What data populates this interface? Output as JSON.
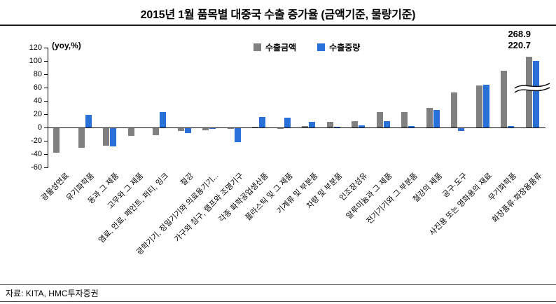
{
  "footer": {
    "source": "자료: KITA, HMC투자증권"
  },
  "colors": {
    "amount": "#808080",
    "weight": "#2a70d9",
    "axis": "#000000"
  },
  "chart_data": {
    "type": "bar",
    "title": "2015년 1월 품목별 대중국 수출 증가율 (금액기준, 물량기준)",
    "ylabel": "(yoy,%)",
    "ylim": [
      -60,
      120
    ],
    "yticks": [
      120,
      100,
      80,
      60,
      40,
      20,
      0,
      -20,
      -40,
      -60
    ],
    "grid": false,
    "legend_position": "top-center-inside",
    "categories": [
      "광물성연료",
      "유기화학품",
      "동과 그 제품",
      "고무와 그 제품",
      "염료, 안료, 페인트, 퍼티, 잉크",
      "철강",
      "광학기기, 정밀기기와 의료용기기...",
      "가구와 침구, 램프와 조명기구",
      "각종 화학공업생산품",
      "플라스틱 및 그 제품",
      "기계류 및 부분품",
      "차량 및 부분품",
      "인조장섬유",
      "알루미늄과 그 제품",
      "전기기기와 그 부분품",
      "철강의 제품",
      "공구·도구",
      "사진용 또는 영화용의 재료",
      "무기화학품",
      "화장품류·화장용품류"
    ],
    "series": [
      {
        "name": "수출금액",
        "color": "#808080",
        "values": [
          -38,
          -30,
          -27,
          -13,
          -12,
          -5,
          -4,
          -2,
          1,
          -2,
          2,
          8,
          10,
          23,
          23,
          29,
          53,
          63,
          85,
          268.9
        ]
      },
      {
        "name": "수출중량",
        "color": "#2a70d9",
        "values": [
          0,
          19,
          -28,
          0,
          23,
          -8,
          -2,
          -22,
          16,
          15,
          8,
          1,
          3,
          10,
          2,
          26,
          -5,
          64,
          2,
          220.7
        ]
      }
    ],
    "axis_break": {
      "applies_to": "화장품류·화장용품류",
      "display_cap_amount": 106,
      "display_cap_weight": 100
    },
    "peak_labels": {
      "amount": "268.9",
      "weight": "220.7"
    }
  }
}
